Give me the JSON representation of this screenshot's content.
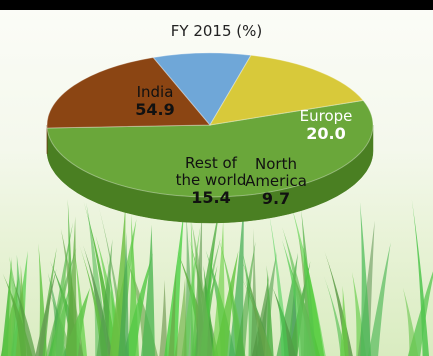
{
  "chart_data": {
    "type": "pie",
    "title": "FY 2015 (%)",
    "slices": [
      {
        "label": "India",
        "label_lines": [
          "India"
        ],
        "value": 54.9,
        "color": "#6aa73a",
        "side": "#4a7f22"
      },
      {
        "label": "Europe",
        "label_lines": [
          "Europe"
        ],
        "value": 20.0,
        "color": "#8b4513",
        "side": "#6b3209"
      },
      {
        "label": "North America",
        "label_lines": [
          "North",
          "America"
        ],
        "value": 9.7,
        "color": "#6fa7d8",
        "side": "#4d82b3"
      },
      {
        "label": "Rest of the world",
        "label_lines": [
          "Rest of",
          "the world"
        ],
        "value": 15.4,
        "color": "#d8c93a",
        "side": "#b2a326"
      }
    ]
  },
  "colors": {
    "label_light": "#ffffff",
    "label_dark": "#111111",
    "grass": "#6fbf4a"
  }
}
